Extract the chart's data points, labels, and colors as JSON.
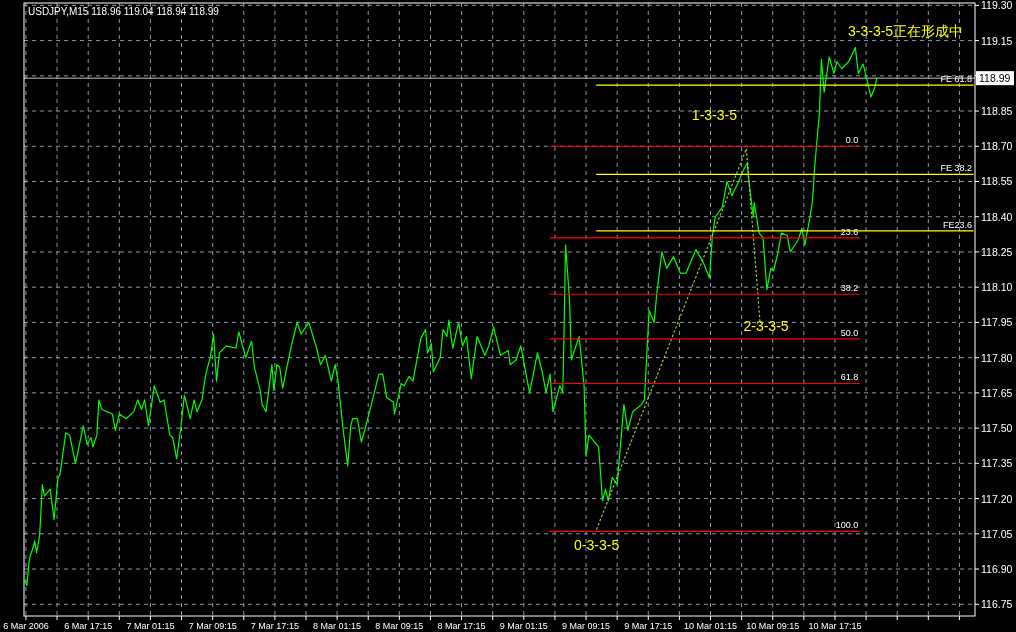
{
  "chart_data": {
    "type": "line",
    "title": "USDJPY,M15  118.96 119.04 118.94 118.99",
    "xlim": [
      "2006-03-06T09:00",
      "2006-03-11T11:15"
    ],
    "ylim": [
      116.7,
      119.31
    ],
    "grid": true,
    "legend": false,
    "xticks": [
      {
        "value": "2006-03-06T09:15",
        "label": "6 Mar 2006"
      },
      {
        "value": "2006-03-06T13:15",
        "label": null
      },
      {
        "value": "2006-03-06T17:15",
        "label": "6 Mar 17:15"
      },
      {
        "value": "2006-03-06T21:15",
        "label": null
      },
      {
        "value": "2006-03-07T01:15",
        "label": "7 Mar 01:15"
      },
      {
        "value": "2006-03-07T05:15",
        "label": null
      },
      {
        "value": "2006-03-07T09:15",
        "label": "7 Mar 09:15"
      },
      {
        "value": "2006-03-07T13:15",
        "label": null
      },
      {
        "value": "2006-03-07T17:15",
        "label": "7 Mar 17:15"
      },
      {
        "value": "2006-03-07T21:15",
        "label": null
      },
      {
        "value": "2006-03-08T01:15",
        "label": "8 Mar 01:15"
      },
      {
        "value": "2006-03-08T05:15",
        "label": null
      },
      {
        "value": "2006-03-08T09:15",
        "label": "8 Mar 09:15"
      },
      {
        "value": "2006-03-08T13:15",
        "label": null
      },
      {
        "value": "2006-03-08T17:15",
        "label": "8 Mar 17:15"
      },
      {
        "value": "2006-03-08T21:15",
        "label": null
      },
      {
        "value": "2006-03-09T01:15",
        "label": "9 Mar 01:15"
      },
      {
        "value": "2006-03-09T05:15",
        "label": null
      },
      {
        "value": "2006-03-09T09:15",
        "label": "9 Mar 09:15"
      },
      {
        "value": "2006-03-09T13:15",
        "label": null
      },
      {
        "value": "2006-03-09T17:15",
        "label": "9 Mar 17:15"
      },
      {
        "value": "2006-03-09T21:15",
        "label": null
      },
      {
        "value": "2006-03-10T01:15",
        "label": "10 Mar 01:15"
      },
      {
        "value": "2006-03-10T05:15",
        "label": null
      },
      {
        "value": "2006-03-10T09:15",
        "label": "10 Mar 09:15"
      },
      {
        "value": "2006-03-10T13:15",
        "label": null
      },
      {
        "value": "2006-03-10T17:15",
        "label": "10 Mar 17:15"
      },
      {
        "value": "2006-03-10T21:15",
        "label": null
      },
      {
        "value": "2006-03-11T01:15",
        "label": null
      },
      {
        "value": "2006-03-11T05:15",
        "label": null
      },
      {
        "value": "2006-03-11T09:15",
        "label": null
      }
    ],
    "yticks": [
      {
        "value": 116.75,
        "label": "116.75"
      },
      {
        "value": 116.9,
        "label": "116.90"
      },
      {
        "value": 117.05,
        "label": "117.05"
      },
      {
        "value": 117.2,
        "label": "117.20"
      },
      {
        "value": 117.35,
        "label": "117.35"
      },
      {
        "value": 117.5,
        "label": "117.50"
      },
      {
        "value": 117.65,
        "label": "117.65"
      },
      {
        "value": 117.8,
        "label": "117.80"
      },
      {
        "value": 117.95,
        "label": "117.95"
      },
      {
        "value": 118.1,
        "label": "118.10"
      },
      {
        "value": 118.25,
        "label": "118.25"
      },
      {
        "value": 118.4,
        "label": "118.40"
      },
      {
        "value": 118.55,
        "label": "118.55"
      },
      {
        "value": 118.7,
        "label": "118.70"
      },
      {
        "value": 118.85,
        "label": "118.85"
      },
      {
        "value": 119.0,
        "label": null
      },
      {
        "value": 119.15,
        "label": "119.15"
      },
      {
        "value": 119.3,
        "label": "119.30"
      }
    ],
    "series": [
      {
        "color": "#00ff00",
        "x": [
          "2006-03-06T09:07",
          "2006-03-06T09:22",
          "2006-03-06T09:37",
          "2006-03-06T09:45",
          "2006-03-06T10:15",
          "2006-03-06T10:22",
          "2006-03-06T10:37",
          "2006-03-06T11:00",
          "2006-03-06T11:22",
          "2006-03-06T11:37",
          "2006-03-06T12:22",
          "2006-03-06T12:52",
          "2006-03-06T13:22",
          "2006-03-06T13:37",
          "2006-03-06T14:22",
          "2006-03-06T14:52",
          "2006-03-06T15:37",
          "2006-03-06T16:15",
          "2006-03-06T16:37",
          "2006-03-06T17:07",
          "2006-03-06T17:37",
          "2006-03-06T17:52",
          "2006-03-06T18:22",
          "2006-03-06T18:37",
          "2006-03-06T19:00",
          "2006-03-06T19:37",
          "2006-03-06T20:22",
          "2006-03-06T20:45",
          "2006-03-06T21:15",
          "2006-03-06T22:07",
          "2006-03-06T23:07",
          "2006-03-06T23:37",
          "2006-03-07T00:07",
          "2006-03-07T00:30",
          "2006-03-07T01:00",
          "2006-03-07T01:45",
          "2006-03-07T02:30",
          "2006-03-07T03:00",
          "2006-03-07T03:45",
          "2006-03-07T04:07",
          "2006-03-07T04:37",
          "2006-03-07T05:07",
          "2006-03-07T05:37",
          "2006-03-07T06:22",
          "2006-03-07T06:52",
          "2006-03-07T07:15",
          "2006-03-07T07:52",
          "2006-03-07T08:22",
          "2006-03-07T09:00",
          "2006-03-07T09:22",
          "2006-03-07T09:45",
          "2006-03-07T10:07",
          "2006-03-07T11:00",
          "2006-03-07T12:15",
          "2006-03-07T12:37",
          "2006-03-07T13:30",
          "2006-03-07T14:15",
          "2006-03-07T14:37",
          "2006-03-07T15:22",
          "2006-03-07T15:37",
          "2006-03-07T16:07",
          "2006-03-07T16:52",
          "2006-03-07T17:07",
          "2006-03-07T17:30",
          "2006-03-07T17:52",
          "2006-03-07T18:15",
          "2006-03-07T18:52",
          "2006-03-07T19:22",
          "2006-03-07T20:07",
          "2006-03-07T20:37",
          "2006-03-07T21:37",
          "2006-03-07T22:37",
          "2006-03-07T23:07",
          "2006-03-07T23:45",
          "2006-03-08T00:30",
          "2006-03-08T01:00",
          "2006-03-08T01:22",
          "2006-03-08T02:00",
          "2006-03-08T02:37",
          "2006-03-08T03:00",
          "2006-03-08T03:15",
          "2006-03-08T03:52",
          "2006-03-08T04:22",
          "2006-03-08T04:52",
          "2006-03-08T05:30",
          "2006-03-08T06:37",
          "2006-03-08T07:07",
          "2006-03-08T07:37",
          "2006-03-08T08:30",
          "2006-03-08T08:37",
          "2006-03-08T09:30",
          "2006-03-08T09:52",
          "2006-03-08T10:30",
          "2006-03-08T11:00",
          "2006-03-08T12:00",
          "2006-03-08T12:37",
          "2006-03-08T12:52",
          "2006-03-08T13:22",
          "2006-03-08T13:37",
          "2006-03-08T14:30",
          "2006-03-08T14:52",
          "2006-03-08T15:22",
          "2006-03-08T15:37",
          "2006-03-08T16:07",
          "2006-03-08T16:52",
          "2006-03-08T17:22",
          "2006-03-08T17:52",
          "2006-03-08T18:30",
          "2006-03-08T18:52",
          "2006-03-08T19:15",
          "2006-03-08T20:15",
          "2006-03-08T20:45",
          "2006-03-08T21:22",
          "2006-03-08T22:15",
          "2006-03-08T23:15",
          "2006-03-08T23:30",
          "2006-03-09T00:15",
          "2006-03-09T00:52",
          "2006-03-09T01:22",
          "2006-03-09T02:00",
          "2006-03-09T03:00",
          "2006-03-09T03:37",
          "2006-03-09T04:07",
          "2006-03-09T04:37",
          "2006-03-09T05:00",
          "2006-03-09T05:52",
          "2006-03-09T06:15",
          "2006-03-09T06:22",
          "2006-03-09T06:37",
          "2006-03-09T07:07",
          "2006-03-09T07:22",
          "2006-03-09T07:45",
          "2006-03-09T08:22",
          "2006-03-09T09:00",
          "2006-03-09T09:15",
          "2006-03-09T09:37",
          "2006-03-09T10:52",
          "2006-03-09T11:22",
          "2006-03-09T11:45",
          "2006-03-09T12:07",
          "2006-03-09T12:37",
          "2006-03-09T13:15",
          "2006-03-09T14:07",
          "2006-03-09T14:37",
          "2006-03-09T15:15",
          "2006-03-09T16:22",
          "2006-03-09T16:45",
          "2006-03-09T17:07",
          "2006-03-09T17:22",
          "2006-03-09T18:00",
          "2006-03-09T18:22",
          "2006-03-09T19:00",
          "2006-03-09T19:37",
          "2006-03-09T20:30",
          "2006-03-09T21:22",
          "2006-03-09T22:07",
          "2006-03-09T23:22",
          "2006-03-10T00:15",
          "2006-03-10T01:07",
          "2006-03-10T01:30",
          "2006-03-10T01:52",
          "2006-03-10T02:45",
          "2006-03-10T03:22",
          "2006-03-10T04:00",
          "2006-03-10T04:52",
          "2006-03-10T05:30",
          "2006-03-10T06:00",
          "2006-03-10T06:07",
          "2006-03-10T06:45",
          "2006-03-10T06:52",
          "2006-03-10T07:30",
          "2006-03-10T08:00",
          "2006-03-10T08:30",
          "2006-03-10T09:00",
          "2006-03-10T09:22",
          "2006-03-10T09:52",
          "2006-03-10T10:22",
          "2006-03-10T11:07",
          "2006-03-10T11:30",
          "2006-03-10T12:30",
          "2006-03-10T13:00",
          "2006-03-10T13:22",
          "2006-03-10T14:00",
          "2006-03-10T14:22",
          "2006-03-10T14:37",
          "2006-03-10T14:52",
          "2006-03-10T15:15",
          "2006-03-10T15:30",
          "2006-03-10T15:52",
          "2006-03-10T16:30",
          "2006-03-10T17:07",
          "2006-03-10T17:30",
          "2006-03-10T18:07",
          "2006-03-10T19:00",
          "2006-03-10T19:52",
          "2006-03-10T20:15",
          "2006-03-10T20:52",
          "2006-03-10T21:15",
          "2006-03-10T21:52",
          "2006-03-10T22:22",
          "2006-03-10T22:37"
        ],
        "values": [
          116.85,
          116.83,
          116.92,
          116.95,
          117.0,
          117.02,
          116.97,
          117.04,
          117.26,
          117.21,
          117.24,
          117.11,
          117.29,
          117.3,
          117.48,
          117.47,
          117.35,
          117.45,
          117.51,
          117.43,
          117.46,
          117.42,
          117.47,
          117.62,
          117.58,
          117.57,
          117.56,
          117.49,
          117.56,
          117.54,
          117.57,
          117.62,
          117.58,
          117.62,
          117.51,
          117.68,
          117.61,
          117.62,
          117.47,
          117.46,
          117.37,
          117.49,
          117.64,
          117.54,
          117.62,
          117.57,
          117.62,
          117.73,
          117.81,
          117.9,
          117.7,
          117.82,
          117.85,
          117.84,
          117.91,
          117.8,
          117.87,
          117.76,
          117.66,
          117.6,
          117.57,
          117.77,
          117.66,
          117.77,
          117.76,
          117.67,
          117.77,
          117.85,
          117.95,
          117.9,
          117.95,
          117.84,
          117.77,
          117.81,
          117.7,
          117.77,
          117.7,
          117.5,
          117.34,
          117.51,
          117.54,
          117.54,
          117.44,
          117.5,
          117.58,
          117.73,
          117.73,
          117.63,
          117.61,
          117.56,
          117.69,
          117.68,
          117.72,
          117.7,
          117.88,
          117.92,
          117.82,
          117.86,
          117.74,
          117.8,
          117.92,
          117.89,
          117.96,
          117.84,
          117.95,
          117.85,
          117.89,
          117.71,
          117.8,
          117.89,
          117.81,
          117.85,
          117.93,
          117.81,
          117.83,
          117.77,
          117.79,
          117.85,
          117.76,
          117.65,
          117.82,
          117.74,
          117.65,
          117.73,
          117.57,
          117.68,
          117.65,
          117.81,
          118.28,
          118.05,
          117.79,
          117.83,
          117.89,
          117.68,
          117.38,
          117.47,
          117.42,
          117.19,
          117.24,
          117.19,
          117.29,
          117.26,
          117.6,
          117.49,
          117.57,
          117.6,
          117.62,
          117.85,
          118.0,
          117.95,
          118.08,
          118.25,
          118.18,
          118.23,
          118.16,
          118.16,
          118.26,
          118.21,
          118.14,
          118.32,
          118.4,
          118.44,
          118.55,
          118.49,
          118.55,
          118.6,
          118.63,
          118.57,
          118.4,
          118.46,
          118.33,
          118.31,
          118.09,
          118.18,
          118.17,
          118.24,
          118.33,
          118.32,
          118.25,
          118.3,
          118.35,
          118.28,
          118.39,
          118.47,
          118.6,
          118.7,
          118.84,
          119.07,
          118.93,
          119.08,
          119.01,
          119.06,
          119.03,
          119.06,
          119.12,
          119.01,
          119.05,
          119.0,
          118.91,
          118.95,
          118.99
        ]
      },
      {
        "color": "#9acd32",
        "line_style": "dotted",
        "x": [
          "2006-03-09T10:37",
          "2006-03-10T05:52",
          "2006-03-10T07:37"
        ],
        "values": [
          117.07,
          118.69,
          117.95
        ]
      },
      {
        "name": "0.0",
        "color": "#ff0000",
        "x": [
          "2006-03-09T04:37",
          "2006-03-10T20:22"
        ],
        "values": [
          118.7,
          118.7
        ]
      },
      {
        "name": "23.6",
        "color": "#ff0000",
        "x": [
          "2006-03-09T04:37",
          "2006-03-10T20:22"
        ],
        "values": [
          118.31,
          118.31
        ]
      },
      {
        "name": "38.2",
        "color": "#ff0000",
        "x": [
          "2006-03-09T04:37",
          "2006-03-10T20:22"
        ],
        "values": [
          118.07,
          118.07
        ]
      },
      {
        "name": "50.0",
        "color": "#ff0000",
        "x": [
          "2006-03-09T04:37",
          "2006-03-10T20:22"
        ],
        "values": [
          117.88,
          117.88
        ]
      },
      {
        "name": "61.8",
        "color": "#ff0000",
        "x": [
          "2006-03-09T04:37",
          "2006-03-10T20:22"
        ],
        "values": [
          117.69,
          117.69
        ]
      },
      {
        "name": "100.0",
        "color": "#ff0000",
        "x": [
          "2006-03-09T04:37",
          "2006-03-10T20:22"
        ],
        "values": [
          117.06,
          117.06
        ]
      },
      {
        "name": "FE 61.8",
        "color": "#ffff00",
        "x": [
          "2006-03-09T10:37",
          "2006-03-11T11:00"
        ],
        "values": [
          118.96,
          118.96
        ]
      },
      {
        "name": "FE 38.2",
        "color": "#ffff00",
        "x": [
          "2006-03-09T10:37",
          "2006-03-11T11:00"
        ],
        "values": [
          118.58,
          118.58
        ]
      },
      {
        "name": "FE23.6",
        "color": "#ffff00",
        "x": [
          "2006-03-09T10:37",
          "2006-03-11T11:00"
        ],
        "values": [
          118.34,
          118.34
        ]
      }
    ],
    "ref_lines": [
      {
        "axis": "y",
        "value": 118.99,
        "label": "118.99",
        "color": "#c0c0c0"
      }
    ],
    "annotations": [
      {
        "text": "1-3-3-5",
        "x": "2006-03-10T05:52",
        "y": 118.69
      },
      {
        "text": "0-3-3-5",
        "x": "2006-03-09T10:37",
        "y": 117.07
      },
      {
        "text": "2-3-3-5",
        "x": "2006-03-10T07:37",
        "y": 117.95
      },
      "3-3-3-5正在形成中"
    ]
  }
}
